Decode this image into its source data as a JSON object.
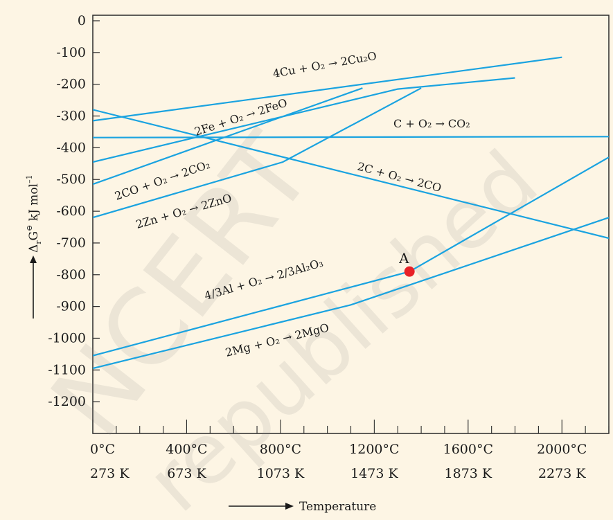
{
  "chart_data": {
    "type": "line",
    "title": "",
    "xlabel": "Temperature",
    "ylabel": "ΔrG⊖ kJ mol⁻¹",
    "xlim": [
      0,
      2200
    ],
    "ylim": [
      -1300,
      0
    ],
    "yticks": [
      0,
      -100,
      -200,
      -300,
      -400,
      -500,
      -600,
      -700,
      -800,
      -900,
      -1000,
      -1100,
      -1200
    ],
    "ytick_labels": [
      "0",
      "-100",
      "-200",
      "-300",
      "-400",
      "-500",
      "-600",
      "-700",
      "-800",
      "-900",
      "-1000",
      "-1100",
      "-1200"
    ],
    "xticks": [
      0,
      400,
      800,
      1200,
      1600,
      2000
    ],
    "xtick_labels_celsius": [
      "0°C",
      "400°C",
      "800°C",
      "1200°C",
      "1600°C",
      "2000°C"
    ],
    "xtick_labels_kelvin": [
      "273 K",
      "673 K",
      "1073 K",
      "1473 K",
      "1873 K",
      "2273 K"
    ],
    "grid": false,
    "series": [
      {
        "name": "4Cu + O₂ → 2Cu₂O",
        "x": [
          0,
          2000
        ],
        "y": [
          -315,
          -115
        ]
      },
      {
        "name": "2Fe + O₂ → 2FeO",
        "x": [
          0,
          1300,
          1800
        ],
        "y": [
          -445,
          -215,
          -180
        ]
      },
      {
        "name": "C + O₂ → CO₂",
        "x": [
          0,
          2200
        ],
        "y": [
          -368,
          -365
        ]
      },
      {
        "name": "2CO + O₂ → 2CO₂",
        "x": [
          0,
          1150
        ],
        "y": [
          -515,
          -212
        ]
      },
      {
        "name": "2C + O₂ → 2CO",
        "x": [
          0,
          2200
        ],
        "y": [
          -280,
          -685
        ]
      },
      {
        "name": "2Zn + O₂ → 2ZnO",
        "x": [
          0,
          810,
          1400
        ],
        "y": [
          -620,
          -445,
          -212
        ]
      },
      {
        "name": "4/3Al + O₂ → 2/3Al₂O₃",
        "x": [
          0,
          1350,
          2200
        ],
        "y": [
          -1055,
          -790,
          -430
        ]
      },
      {
        "name": "2Mg + O₂ → 2MgO",
        "x": [
          0,
          1100,
          2200
        ],
        "y": [
          -1095,
          -895,
          -620
        ]
      }
    ],
    "annotations": [
      {
        "text": "A",
        "x": 1350,
        "y": -790
      }
    ],
    "colors": {
      "line": "#1aa3e0",
      "point": "#e82127",
      "background": "#fdf5e4",
      "frame": "#2a2a2a"
    }
  },
  "watermark": "NCERT not to be republished"
}
